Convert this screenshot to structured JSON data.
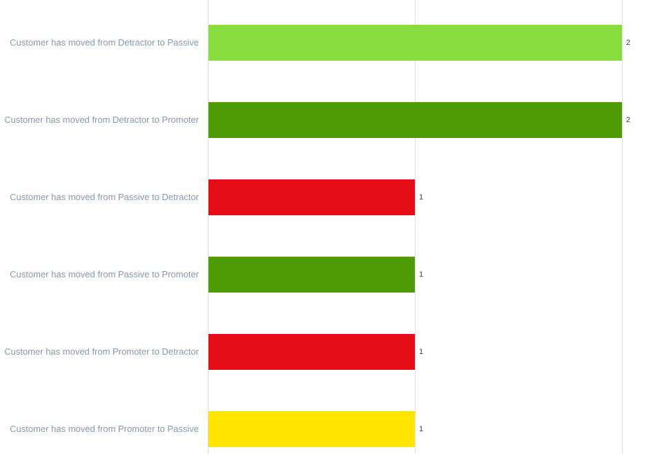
{
  "chart_data": {
    "type": "bar",
    "orientation": "horizontal",
    "title": "",
    "xlabel": "",
    "ylabel": "",
    "categories": [
      "Customer has moved from Detractor to Passive",
      "Customer has moved from Detractor to Promoter",
      "Customer has moved from Passive to Detractor",
      "Customer has moved from Passive to Promoter",
      "Customer has moved from Promoter to Detractor",
      "Customer has moved from Promoter to Passive"
    ],
    "values": [
      2,
      2,
      1,
      1,
      1,
      1
    ],
    "value_labels": [
      "2",
      "2",
      "1",
      "1",
      "1",
      "1"
    ],
    "bar_colors": [
      "#87dc3e",
      "#4f9b07",
      "#e60d17",
      "#4f9b07",
      "#e60d17",
      "#ffe500"
    ],
    "xlim": [
      0,
      2.19
    ],
    "x_gridline_values": [
      0,
      1,
      2
    ],
    "grid": true,
    "legend": false,
    "category_label_color": "#8a99ae",
    "value_label_color": "#404040",
    "gridline_color": "#e3e3e3",
    "axis_line_color": "#d9dde3",
    "background_color": "#ffffff"
  }
}
